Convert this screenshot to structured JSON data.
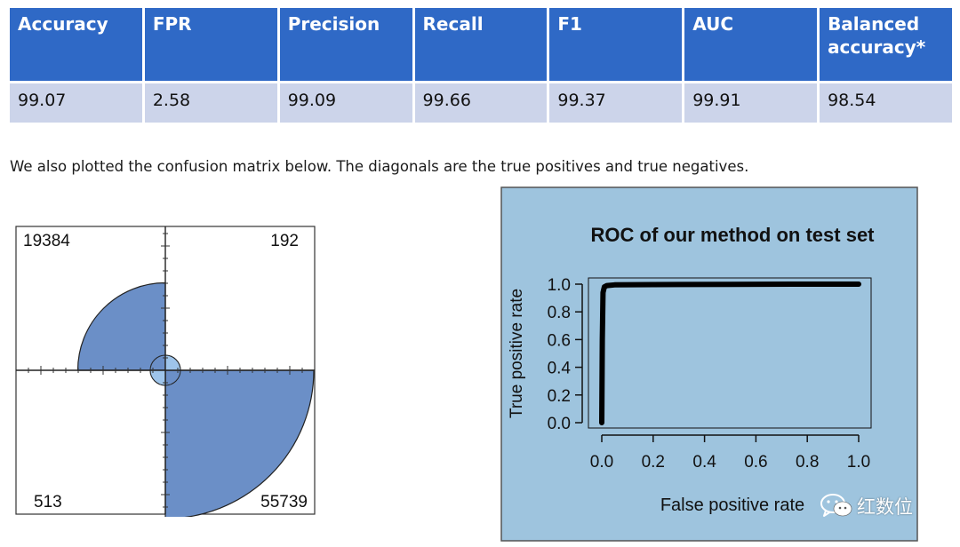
{
  "metrics_table": {
    "headers": [
      "Accuracy",
      "FPR",
      "Precision",
      "Recall",
      "F1",
      "AUC",
      "Balanced accuracy*"
    ],
    "values": [
      "99.07",
      "2.58",
      "99.09",
      "99.66",
      "99.37",
      "99.91",
      "98.54"
    ],
    "colors": {
      "header_bg": "#2f69c6",
      "header_text": "#ffffff",
      "row_bg": "#ccd4ea"
    }
  },
  "description": "We also plotted the confusion matrix below. The diagonals are the true positives and true negatives.",
  "chart_data": [
    {
      "type": "fourfold",
      "cells": [
        {
          "position": "top-left",
          "value": 19384,
          "label": "19384"
        },
        {
          "position": "top-right",
          "value": 192,
          "label": "192"
        },
        {
          "position": "bottom-left",
          "value": 513,
          "label": "513"
        },
        {
          "position": "bottom-right",
          "value": 55739,
          "label": "55739"
        }
      ],
      "fill_color": "#6b8fc7",
      "center_fill_color": "#9ec4ea",
      "grid": false
    },
    {
      "type": "line",
      "title": "ROC of our method on test set",
      "xlabel": "False positive rate",
      "ylabel": "True positive rate",
      "xlim": [
        0,
        1
      ],
      "ylim": [
        0,
        1
      ],
      "xticks": [
        "0.0",
        "0.2",
        "0.4",
        "0.6",
        "0.8",
        "1.0"
      ],
      "yticks": [
        "0.0",
        "0.2",
        "0.4",
        "0.6",
        "0.8",
        "1.0"
      ],
      "series": [
        {
          "x": [
            0,
            0.002,
            0.005,
            0.01,
            0.02,
            0.05,
            0.2,
            0.5,
            0.8,
            1.0
          ],
          "y": [
            0,
            0.6,
            0.94,
            0.98,
            0.99,
            0.995,
            0.997,
            0.999,
            1.0,
            1.0
          ]
        }
      ],
      "background_color": "#9ec4de",
      "line_color": "#000000",
      "grid": false
    }
  ],
  "watermark": {
    "text": "红数位",
    "icon": "wechat-icon"
  }
}
